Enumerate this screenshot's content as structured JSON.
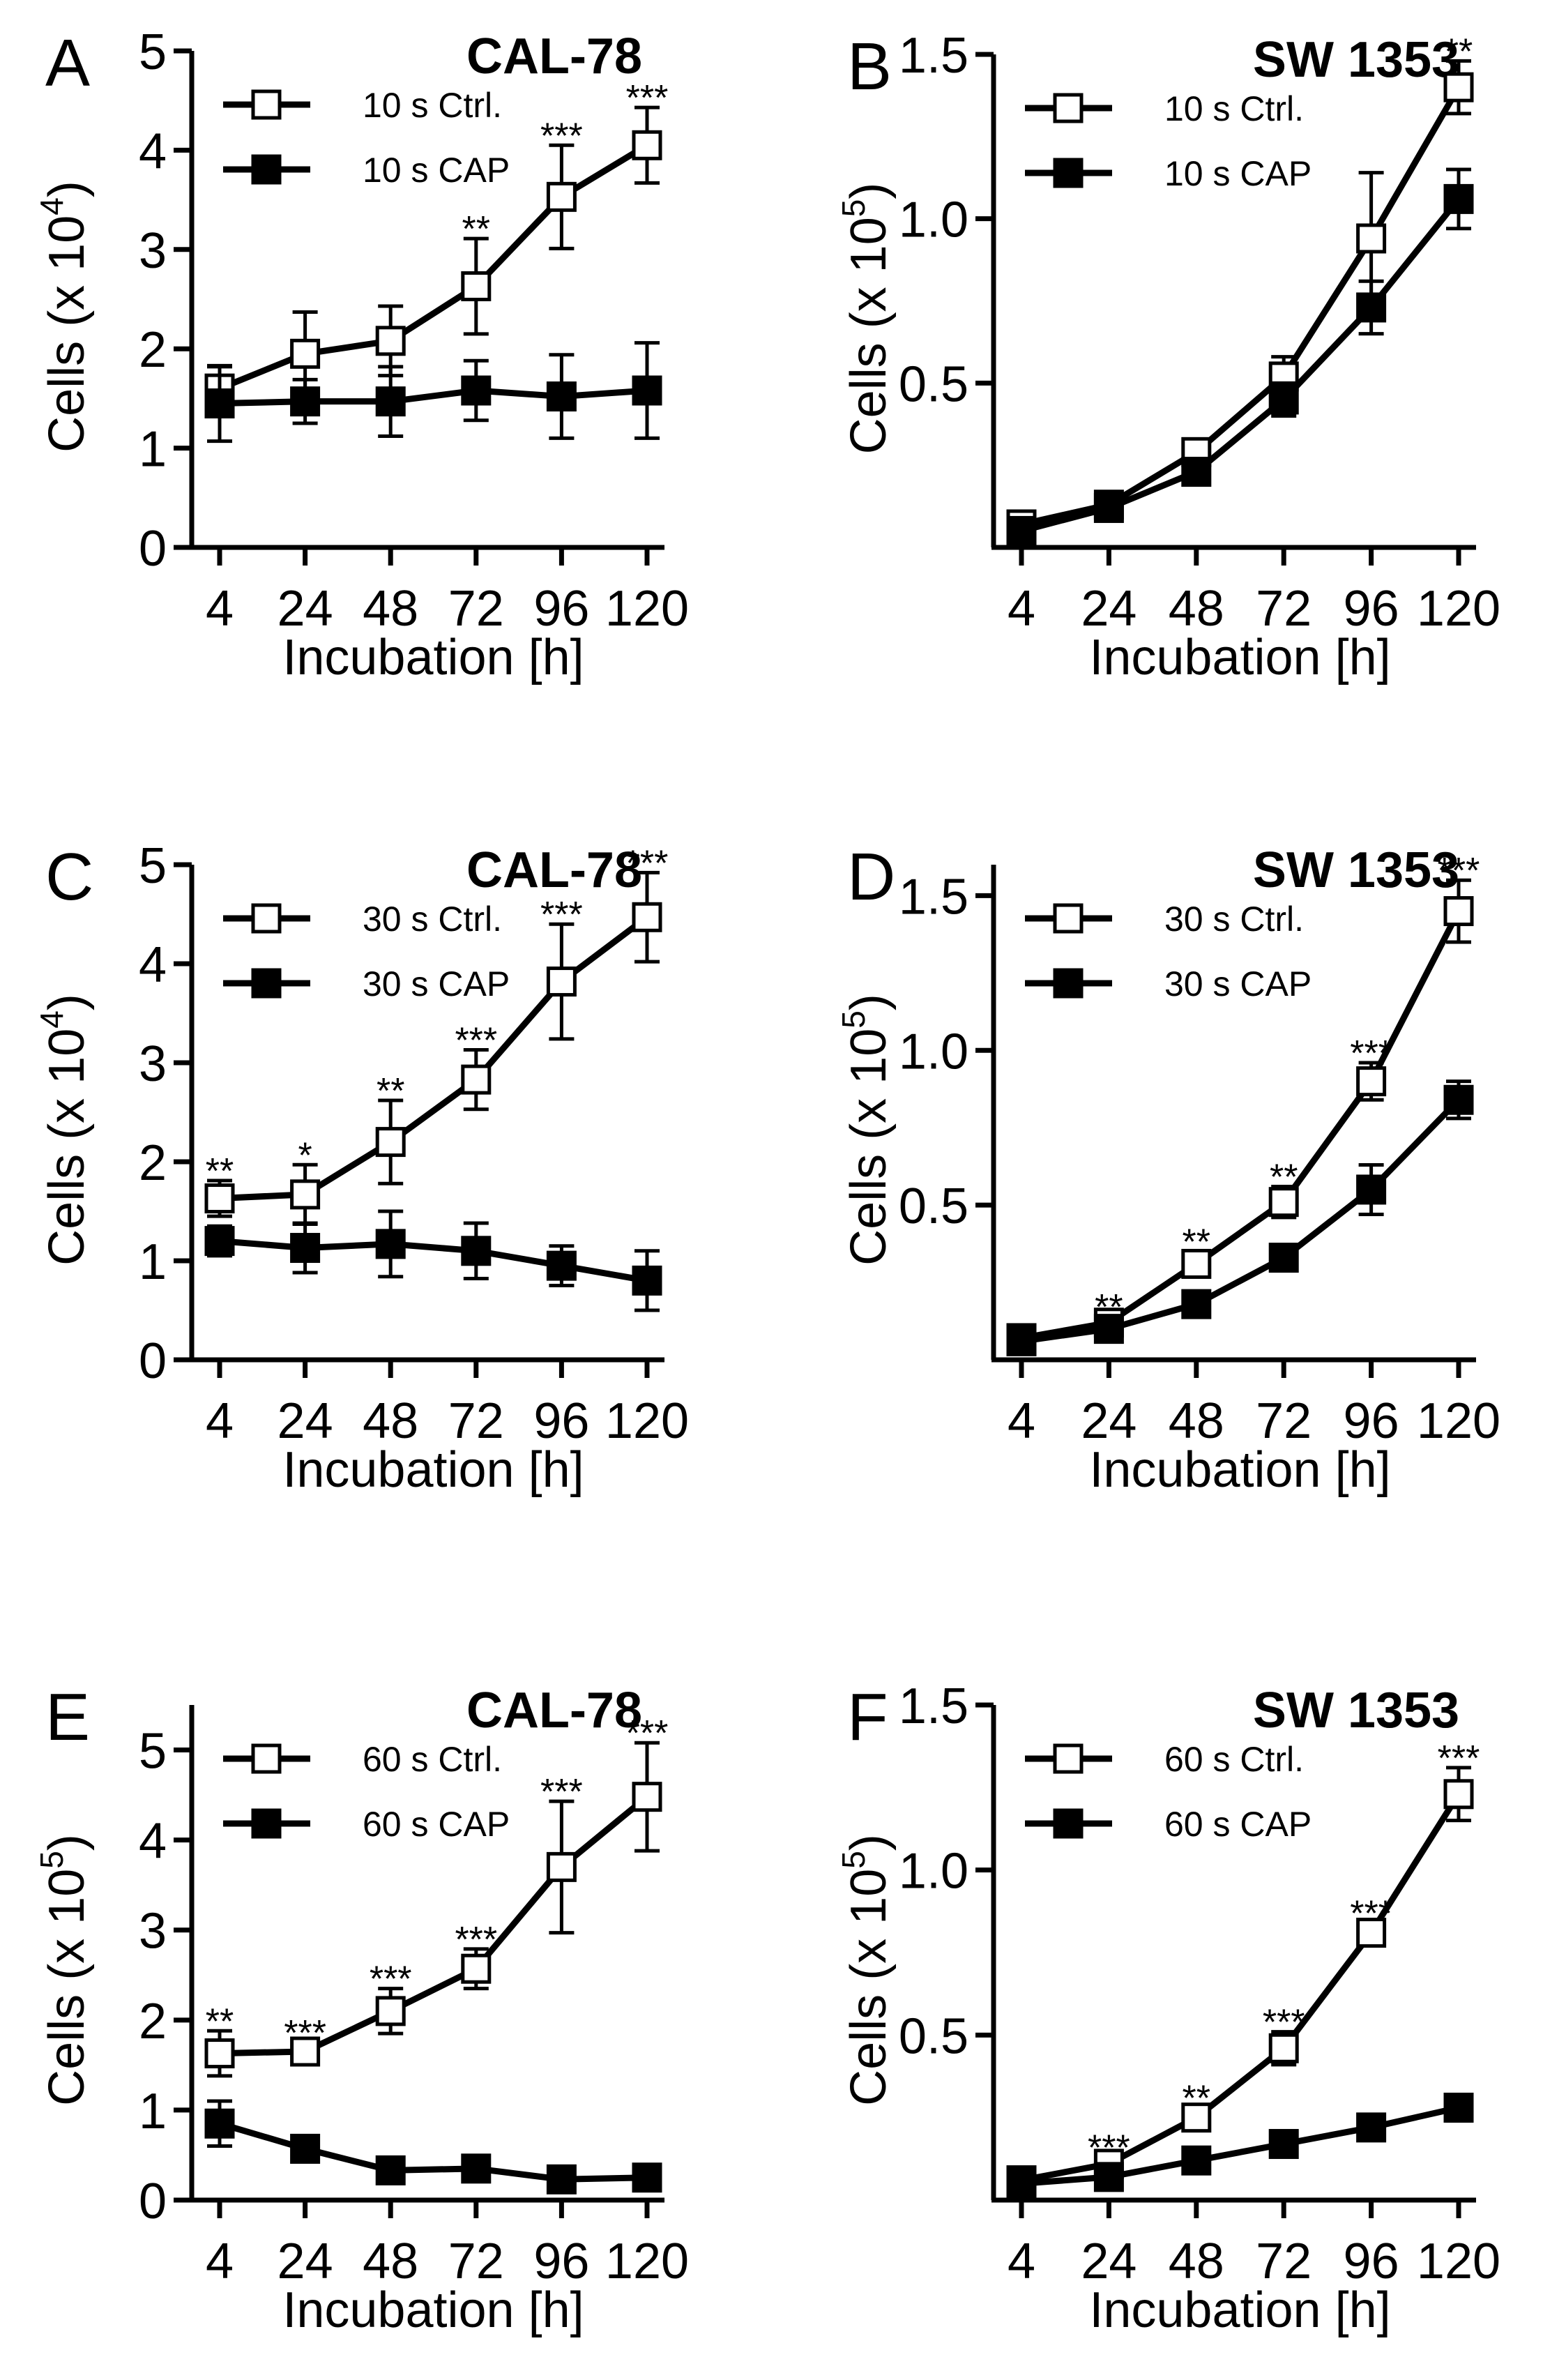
{
  "chart_data": [
    {
      "type": "line",
      "panel_letter": "A",
      "title": "CAL-78",
      "xlabel": "Incubation [h]",
      "ylabel": "Cells (x 10",
      "ylabel_exp": "4",
      "ylabel_end": ")",
      "categories": [
        "4",
        "24",
        "48",
        "72",
        "96",
        "120"
      ],
      "ylim": [
        0,
        5
      ],
      "yticks": [
        0,
        1,
        2,
        3,
        4,
        5
      ],
      "ytick_labels": [
        "0",
        "1",
        "2",
        "3",
        "4",
        "5"
      ],
      "series": [
        {
          "name": "10 s Ctrl.",
          "marker": "open-square",
          "values": [
            1.6,
            1.95,
            2.08,
            2.63,
            3.53,
            4.05
          ],
          "errors": [
            0.22,
            0.42,
            0.35,
            0.48,
            0.52,
            0.38
          ]
        },
        {
          "name": "10 s CAP",
          "marker": "filled-square",
          "values": [
            1.45,
            1.47,
            1.47,
            1.58,
            1.52,
            1.58
          ],
          "errors": [
            0.38,
            0.22,
            0.35,
            0.3,
            0.42,
            0.48
          ]
        }
      ],
      "significance": [
        "",
        "",
        "",
        "**",
        "***",
        "***"
      ]
    },
    {
      "type": "line",
      "panel_letter": "B",
      "title": "SW 1353",
      "xlabel": "Incubation [h]",
      "ylabel": "Cells (x 10",
      "ylabel_exp": "5",
      "ylabel_end": ")",
      "categories": [
        "4",
        "24",
        "48",
        "72",
        "96",
        "120"
      ],
      "ylim": [
        0,
        1.5
      ],
      "yticks": [
        0.5,
        1.0,
        1.5
      ],
      "ytick_labels": [
        "0.5",
        "1.0",
        "1.5"
      ],
      "series": [
        {
          "name": "10 s Ctrl.",
          "marker": "open-square",
          "values": [
            0.07,
            0.13,
            0.29,
            0.52,
            0.94,
            1.4
          ],
          "errors": [
            0.02,
            0.02,
            0.03,
            0.06,
            0.2,
            0.08
          ]
        },
        {
          "name": "10 s CAP",
          "marker": "filled-square",
          "values": [
            0.05,
            0.12,
            0.23,
            0.45,
            0.73,
            1.06
          ],
          "errors": [
            0.02,
            0.02,
            0.03,
            0.05,
            0.08,
            0.09
          ]
        }
      ],
      "significance": [
        "",
        "",
        "",
        "",
        "",
        "**"
      ]
    },
    {
      "type": "line",
      "panel_letter": "C",
      "title": "CAL-78",
      "xlabel": "Incubation [h]",
      "ylabel": "Cells (x 10",
      "ylabel_exp": "4",
      "ylabel_end": ")",
      "categories": [
        "4",
        "24",
        "48",
        "72",
        "96",
        "120"
      ],
      "ylim": [
        0,
        5
      ],
      "yticks": [
        0,
        1,
        2,
        3,
        4,
        5
      ],
      "ytick_labels": [
        "0",
        "1",
        "2",
        "3",
        "4",
        "5"
      ],
      "series": [
        {
          "name": "30 s Ctrl.",
          "marker": "open-square",
          "values": [
            1.63,
            1.67,
            2.2,
            2.83,
            3.82,
            4.47
          ],
          "errors": [
            0.18,
            0.3,
            0.42,
            0.3,
            0.58,
            0.45
          ]
        },
        {
          "name": "30 s CAP",
          "marker": "filled-square",
          "values": [
            1.2,
            1.13,
            1.17,
            1.1,
            0.95,
            0.8
          ],
          "errors": [
            0.15,
            0.25,
            0.33,
            0.28,
            0.2,
            0.3
          ]
        }
      ],
      "significance": [
        "**",
        "*",
        "**",
        "***",
        "***",
        "***"
      ]
    },
    {
      "type": "line",
      "panel_letter": "D",
      "title": "SW 1353",
      "xlabel": "Incubation [h]",
      "ylabel": "Cells (x 10",
      "ylabel_exp": "5",
      "ylabel_end": ")",
      "categories": [
        "4",
        "24",
        "48",
        "72",
        "96",
        "120"
      ],
      "ylim": [
        0,
        1.6
      ],
      "yticks": [
        0.5,
        1.0,
        1.5
      ],
      "ytick_labels": [
        "0.5",
        "1.0",
        "1.5"
      ],
      "series": [
        {
          "name": "30 s Ctrl.",
          "marker": "open-square",
          "values": [
            0.07,
            0.12,
            0.31,
            0.51,
            0.9,
            1.45
          ],
          "errors": [
            0.02,
            0.02,
            0.04,
            0.05,
            0.06,
            0.1
          ]
        },
        {
          "name": "30 s CAP",
          "marker": "filled-square",
          "values": [
            0.06,
            0.1,
            0.18,
            0.33,
            0.55,
            0.84
          ],
          "errors": [
            0.02,
            0.02,
            0.03,
            0.03,
            0.08,
            0.06
          ]
        }
      ],
      "significance": [
        "",
        "**",
        "**",
        "**",
        "***",
        "***"
      ]
    },
    {
      "type": "line",
      "panel_letter": "E",
      "title": "CAL-78",
      "xlabel": "Incubation [h]",
      "ylabel": "Cells (x 10",
      "ylabel_exp": "5",
      "ylabel_end": ")",
      "categories": [
        "4",
        "24",
        "48",
        "72",
        "96",
        "120"
      ],
      "ylim": [
        0,
        5.5
      ],
      "yticks": [
        0,
        1,
        2,
        3,
        4,
        5
      ],
      "ytick_labels": [
        "0",
        "1",
        "2",
        "3",
        "4",
        "5"
      ],
      "series": [
        {
          "name": "60 s Ctrl.",
          "marker": "open-square",
          "values": [
            1.63,
            1.65,
            2.1,
            2.57,
            3.7,
            4.48
          ],
          "errors": [
            0.25,
            0.1,
            0.25,
            0.22,
            0.73,
            0.6
          ]
        },
        {
          "name": "60 s CAP",
          "marker": "filled-square",
          "values": [
            0.85,
            0.57,
            0.33,
            0.35,
            0.23,
            0.25
          ],
          "errors": [
            0.25,
            0.08,
            0.08,
            0.08,
            0.08,
            0.08
          ]
        }
      ],
      "significance": [
        "**",
        "***",
        "***",
        "***",
        "***",
        "***"
      ]
    },
    {
      "type": "line",
      "panel_letter": "F",
      "title": "SW 1353",
      "xlabel": "Incubation [h]",
      "ylabel": "Cells (x 10",
      "ylabel_exp": "5",
      "ylabel_end": ")",
      "categories": [
        "4",
        "24",
        "48",
        "72",
        "96",
        "120"
      ],
      "ylim": [
        0,
        1.5
      ],
      "yticks": [
        0.5,
        1.0,
        1.5
      ],
      "ytick_labels": [
        "0.5",
        "1.0",
        "1.5"
      ],
      "series": [
        {
          "name": "60 s Ctrl.",
          "marker": "open-square",
          "values": [
            0.06,
            0.11,
            0.25,
            0.46,
            0.81,
            1.23
          ],
          "errors": [
            0.02,
            0.02,
            0.03,
            0.05,
            0.03,
            0.08
          ]
        },
        {
          "name": "60 s CAP",
          "marker": "filled-square",
          "values": [
            0.05,
            0.07,
            0.12,
            0.17,
            0.22,
            0.28
          ],
          "errors": [
            0.01,
            0.01,
            0.02,
            0.02,
            0.02,
            0.04
          ]
        }
      ],
      "significance": [
        "",
        "***",
        "**",
        "***",
        "***",
        "***"
      ]
    }
  ]
}
